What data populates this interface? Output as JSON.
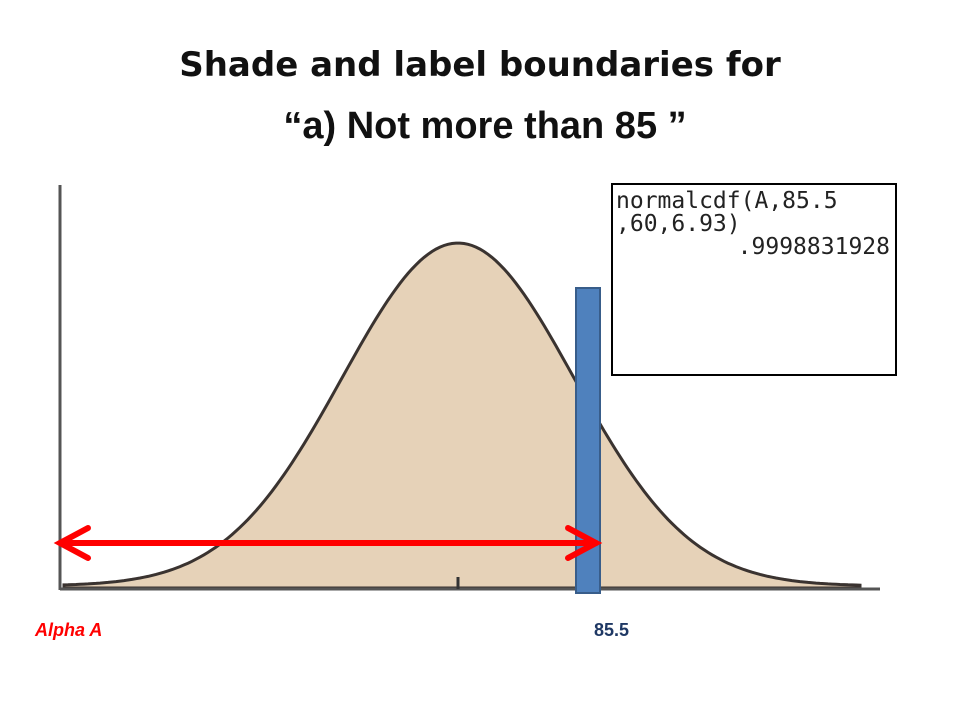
{
  "title": {
    "line1": "Shade and label boundaries for",
    "line2": "“a) Not more than 85 ”"
  },
  "calculator": {
    "lines": [
      "normalcdf(A,85.5",
      ",60,6.93)",
      ".9998831928"
    ]
  },
  "labels": {
    "left": "Alpha A",
    "boundary": "85.5"
  }
}
